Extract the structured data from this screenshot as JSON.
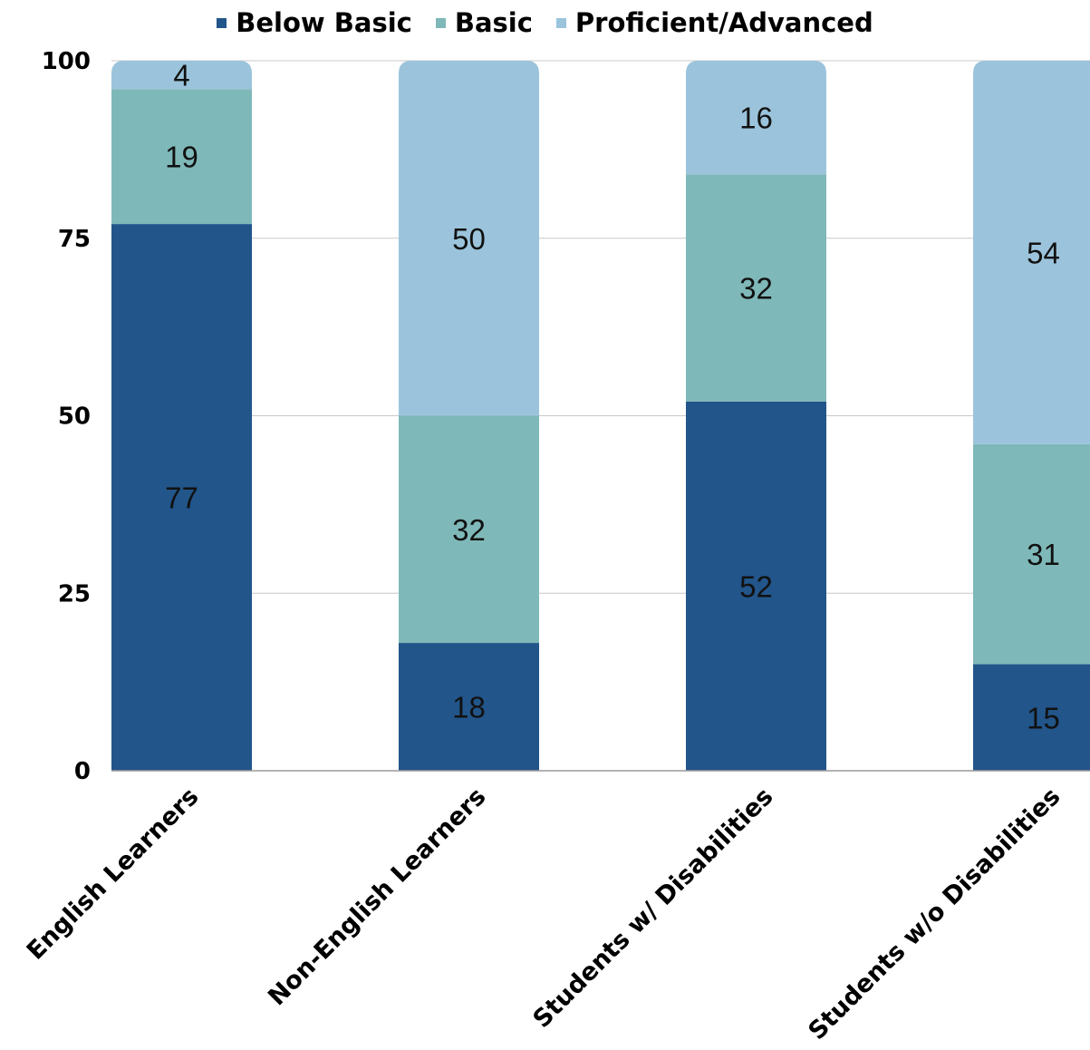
{
  "chart_data": {
    "type": "bar",
    "stacked": true,
    "categories": [
      "English Learners",
      "Non-English Learners",
      "Students w/ Disabilities",
      "Students w/o Disabilities"
    ],
    "series": [
      {
        "name": "Below Basic",
        "values": [
          77,
          18,
          52,
          15
        ],
        "color": "#22558a"
      },
      {
        "name": "Basic",
        "values": [
          19,
          32,
          32,
          31
        ],
        "color": "#7fb8b8"
      },
      {
        "name": "Proficient/Advanced",
        "values": [
          4,
          50,
          16,
          54
        ],
        "color": "#9bc4dc"
      }
    ],
    "yticks": [
      "0",
      "25",
      "50",
      "75",
      "100"
    ],
    "ylim": [
      0,
      100
    ],
    "grid": true,
    "legend_position": "top-center",
    "title": "",
    "xlabel": "",
    "ylabel": ""
  }
}
